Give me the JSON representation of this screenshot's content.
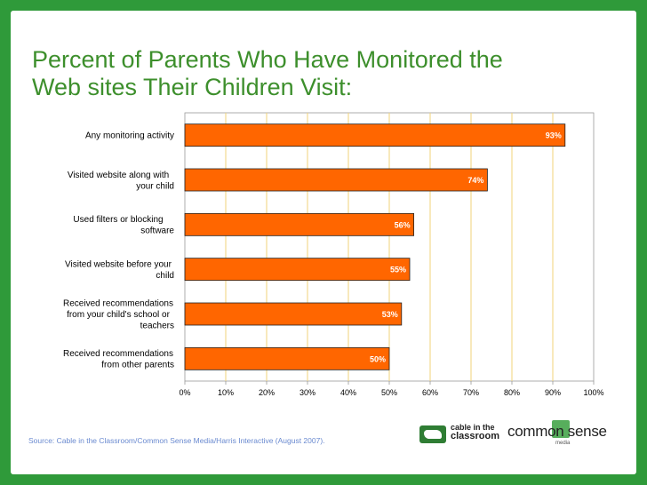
{
  "slide": {
    "title_line1": "Percent of Parents Who Have Monitored the",
    "title_line2": "Web sites Their Children Visit:",
    "source": "Source: Cable in the Classroom/Common Sense Media/Harris Interactive (August 2007).",
    "logos": {
      "cable_line1": "cable in the",
      "cable_line2": "classroom",
      "common_sense": "common sense",
      "media": "media"
    }
  },
  "colors": {
    "bar": "#ff6600",
    "background": "#2f9a3a",
    "title": "#3d8f2c",
    "gridline": "#f2d37a",
    "source": "#6a8ad0"
  },
  "chart_data": {
    "type": "bar",
    "orientation": "horizontal",
    "categories": [
      [
        "Any monitoring activity"
      ],
      [
        "Visited website along with",
        "your child"
      ],
      [
        "Used filters or blocking",
        "software"
      ],
      [
        "Visited website before your",
        "child"
      ],
      [
        "Received recommendations",
        "from your child's school or",
        "teachers"
      ],
      [
        "Received recommendations",
        "from other parents"
      ]
    ],
    "values": [
      93,
      74,
      56,
      55,
      53,
      50
    ],
    "data_labels": [
      "93%",
      "74%",
      "56%",
      "55%",
      "53%",
      "50%"
    ],
    "xlim": [
      0,
      100
    ],
    "xticks": [
      "0%",
      "10%",
      "20%",
      "30%",
      "40%",
      "50%",
      "60%",
      "70%",
      "80%",
      "90%",
      "100%"
    ],
    "grid": true
  }
}
